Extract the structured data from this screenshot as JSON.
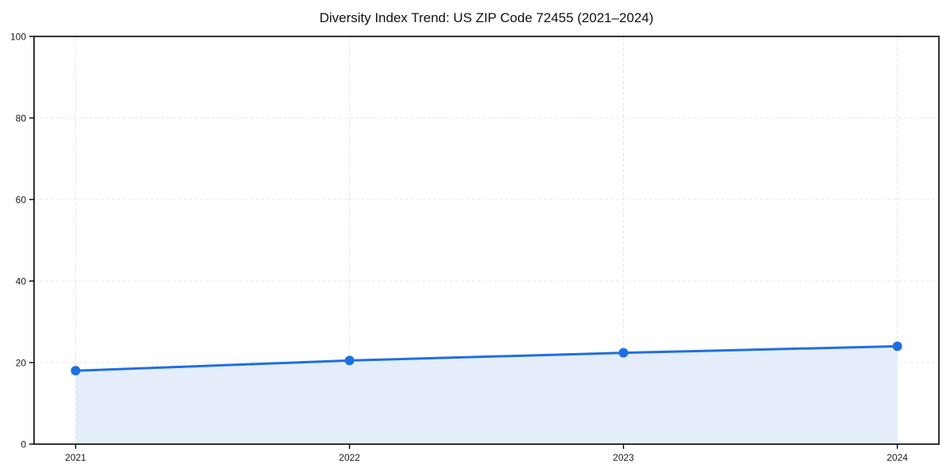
{
  "chart_data": {
    "type": "area",
    "title": "Diversity Index Trend: US ZIP Code 72455 (2021–2024)",
    "series_name": "Diversity Index",
    "x": [
      2021,
      2022,
      2023,
      2024
    ],
    "xtick_labels": [
      "2021",
      "2022",
      "2023",
      "2024"
    ],
    "values": [
      18,
      20.5,
      22.4,
      24
    ],
    "xlabel": "",
    "ylabel": "",
    "ylim": [
      0,
      100
    ],
    "yticks": [
      0,
      20,
      40,
      60,
      80,
      100
    ],
    "grid": "dashed-both-axes",
    "legend": "none",
    "colors": {
      "line": "#1e6fe0",
      "marker": "#1e6fe0",
      "fill": "#e5edfb",
      "grid": "#e4e4e4",
      "spine": "#000000",
      "text": "#111111",
      "background": "#ffffff"
    }
  }
}
